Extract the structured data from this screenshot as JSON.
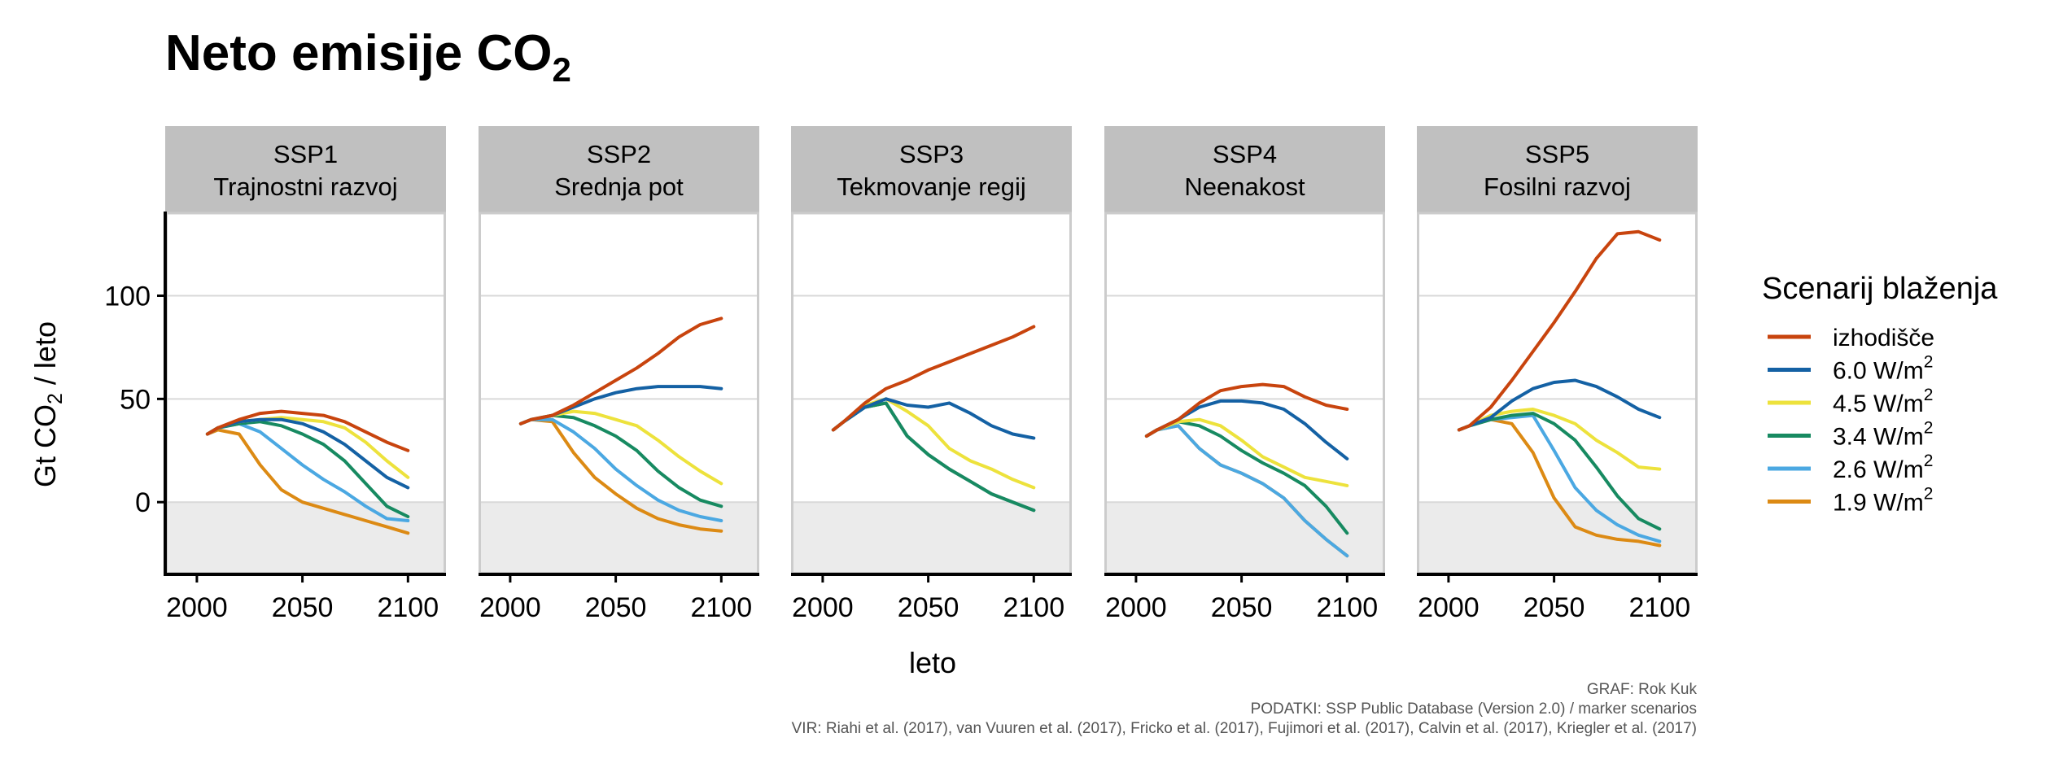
{
  "title": {
    "main": "Neto emisije CO",
    "sub": "2"
  },
  "y_axis": {
    "label_pre": "Gt CO",
    "label_sub": "2",
    "label_post": " / leto"
  },
  "x_axis": {
    "label": "leto"
  },
  "legend": {
    "title": "Scenarij blaženja",
    "placement": "right",
    "entries": [
      {
        "key": "baseline",
        "text": "izhodišče",
        "sup": "",
        "color": "#c8440e"
      },
      {
        "key": "6.0",
        "text": "6.0 W/m",
        "sup": "2",
        "color": "#1461a4"
      },
      {
        "key": "4.5",
        "text": "4.5 W/m",
        "sup": "2",
        "color": "#ede23c"
      },
      {
        "key": "3.4",
        "text": "3.4 W/m",
        "sup": "2",
        "color": "#178a61"
      },
      {
        "key": "2.6",
        "text": "2.6 W/m",
        "sup": "2",
        "color": "#4ba8e2"
      },
      {
        "key": "1.9",
        "text": "1.9 W/m",
        "sup": "2",
        "color": "#dc8a14"
      }
    ]
  },
  "caption": {
    "line1": "GRAF: Rok Kuk",
    "line2": "PODATKI: SSP Public Database (Version 2.0) / marker scenarios",
    "line3": "VIR: Riahi et al. (2017), van Vuuren et al. (2017), Fricko et al. (2017), Fujimori et al. (2017), Calvin et al. (2017), Kriegler et al. (2017)"
  },
  "colors": {
    "strip_bg": "#c0c0c0",
    "panel_border": "#cccccc",
    "negative_band": "#ebebeb",
    "grid": "#d9d9d9"
  },
  "chart_data": {
    "type": "line",
    "xlabel": "leto",
    "ylabel": "Gt CO2 / leto",
    "xlim": [
      1985,
      2118
    ],
    "ylim": [
      -35,
      140
    ],
    "x_ticks": [
      2000,
      2050,
      2100
    ],
    "y_ticks": [
      0,
      50,
      100
    ],
    "grid": true,
    "negative_shaded": true,
    "x": [
      2005,
      2010,
      2020,
      2030,
      2040,
      2050,
      2060,
      2070,
      2080,
      2090,
      2100
    ],
    "panels": [
      {
        "line1": "SSP1",
        "line2": "Trajnostni razvoj",
        "series": [
          {
            "name": "izhodišče",
            "values": [
              33,
              36,
              40,
              43,
              44,
              43,
              42,
              39,
              34,
              29,
              25
            ]
          },
          {
            "name": "6.0 W/m2",
            "values": [
              33,
              36,
              39,
              40,
              40,
              38,
              34,
              28,
              20,
              12,
              7
            ]
          },
          {
            "name": "4.5 W/m2",
            "values": [
              33,
              36,
              39,
              40,
              41,
              40,
              39,
              36,
              29,
              20,
              12
            ]
          },
          {
            "name": "3.4 W/m2",
            "values": [
              33,
              36,
              38,
              39,
              37,
              33,
              28,
              20,
              9,
              -2,
              -7
            ]
          },
          {
            "name": "2.6 W/m2",
            "values": [
              33,
              36,
              38,
              34,
              26,
              18,
              11,
              5,
              -2,
              -8,
              -9
            ]
          },
          {
            "name": "1.9 W/m2",
            "values": [
              33,
              35,
              33,
              18,
              6,
              0,
              -3,
              -6,
              -9,
              -12,
              -15
            ]
          }
        ]
      },
      {
        "line1": "SSP2",
        "line2": "Srednja pot",
        "series": [
          {
            "name": "izhodišče",
            "values": [
              38,
              40,
              42,
              47,
              53,
              59,
              65,
              72,
              80,
              86,
              89
            ]
          },
          {
            "name": "6.0 W/m2",
            "values": [
              38,
              40,
              42,
              46,
              50,
              53,
              55,
              56,
              56,
              56,
              55
            ]
          },
          {
            "name": "4.5 W/m2",
            "values": [
              38,
              40,
              42,
              44,
              43,
              40,
              37,
              30,
              22,
              15,
              9
            ]
          },
          {
            "name": "3.4 W/m2",
            "values": [
              38,
              40,
              42,
              41,
              37,
              32,
              25,
              15,
              7,
              1,
              -2
            ]
          },
          {
            "name": "2.6 W/m2",
            "values": [
              38,
              40,
              40,
              34,
              26,
              16,
              8,
              1,
              -4,
              -7,
              -9
            ]
          },
          {
            "name": "1.9 W/m2",
            "values": [
              38,
              40,
              39,
              24,
              12,
              4,
              -3,
              -8,
              -11,
              -13,
              -14
            ]
          }
        ]
      },
      {
        "line1": "SSP3",
        "line2": "Tekmovanje regij",
        "series": [
          {
            "name": "izhodišče",
            "values": [
              35,
              39,
              48,
              55,
              59,
              64,
              68,
              72,
              76,
              80,
              85
            ]
          },
          {
            "name": "6.0 W/m2",
            "values": [
              35,
              39,
              46,
              50,
              47,
              46,
              48,
              43,
              37,
              33,
              31
            ]
          },
          {
            "name": "4.5 W/m2",
            "values": [
              35,
              39,
              47,
              50,
              44,
              37,
              26,
              20,
              16,
              11,
              7
            ]
          },
          {
            "name": "3.4 W/m2",
            "values": [
              35,
              39,
              46,
              48,
              32,
              23,
              16,
              10,
              4,
              0,
              -4
            ]
          },
          {
            "name": "2.6 W/m2",
            "values": [
              35,
              39,
              46,
              48,
              32,
              23,
              16,
              10,
              4,
              0,
              -4
            ]
          },
          {
            "name": "1.9 W/m2",
            "values": [
              35,
              39,
              46,
              48,
              32,
              23,
              16,
              10,
              4,
              0,
              -4
            ]
          }
        ]
      },
      {
        "line1": "SSP4",
        "line2": "Neenakost",
        "series": [
          {
            "name": "izhodišče",
            "values": [
              32,
              35,
              40,
              48,
              54,
              56,
              57,
              56,
              51,
              47,
              45
            ]
          },
          {
            "name": "6.0 W/m2",
            "values": [
              32,
              35,
              40,
              46,
              49,
              49,
              48,
              45,
              38,
              29,
              21
            ]
          },
          {
            "name": "4.5 W/m2",
            "values": [
              32,
              35,
              39,
              40,
              37,
              30,
              22,
              17,
              12,
              10,
              8
            ]
          },
          {
            "name": "3.4 W/m2",
            "values": [
              32,
              35,
              39,
              37,
              32,
              25,
              19,
              14,
              8,
              -2,
              -15
            ]
          },
          {
            "name": "2.6 W/m2",
            "values": [
              32,
              35,
              37,
              26,
              18,
              14,
              9,
              2,
              -9,
              -18,
              -26
            ]
          },
          {
            "name": "1.9 W/m2",
            "values": [
              32,
              35,
              37,
              26,
              18,
              14,
              9,
              2,
              -9,
              -18,
              -26
            ]
          }
        ]
      },
      {
        "line1": "SSP5",
        "line2": "Fosilni razvoj",
        "series": [
          {
            "name": "izhodišče",
            "values": [
              35,
              37,
              46,
              59,
              73,
              87,
              102,
              118,
              130,
              131,
              127
            ]
          },
          {
            "name": "6.0 W/m2",
            "values": [
              35,
              37,
              41,
              49,
              55,
              58,
              59,
              56,
              51,
              45,
              41
            ]
          },
          {
            "name": "4.5 W/m2",
            "values": [
              35,
              37,
              42,
              44,
              45,
              42,
              38,
              30,
              24,
              17,
              16
            ]
          },
          {
            "name": "3.4 W/m2",
            "values": [
              35,
              37,
              40,
              42,
              43,
              38,
              30,
              17,
              3,
              -8,
              -13
            ]
          },
          {
            "name": "2.6 W/m2",
            "values": [
              35,
              37,
              40,
              41,
              42,
              25,
              7,
              -4,
              -11,
              -16,
              -19
            ]
          },
          {
            "name": "1.9 W/m2",
            "values": [
              35,
              37,
              40,
              38,
              24,
              2,
              -12,
              -16,
              -18,
              -19,
              -21
            ]
          }
        ]
      }
    ]
  }
}
